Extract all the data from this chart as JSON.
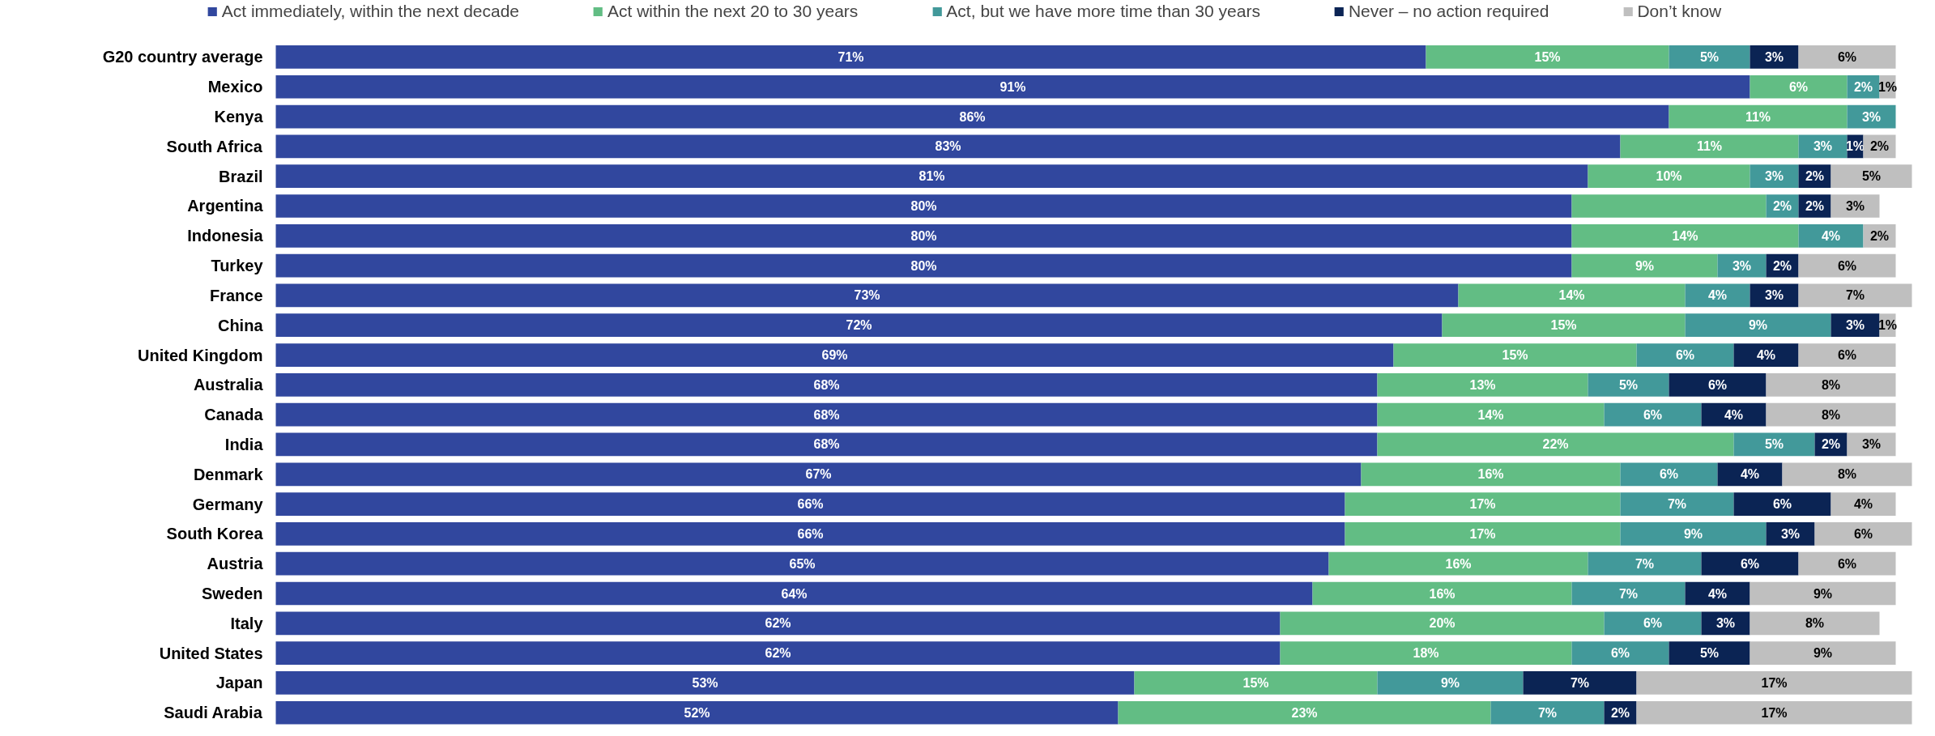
{
  "chart_data": {
    "type": "bar",
    "orientation": "horizontal",
    "stacked": true,
    "legend": "top",
    "categories": [
      "G20 country average",
      "Mexico",
      "Kenya",
      "South Africa",
      "Brazil",
      "Argentina",
      "Indonesia",
      "Turkey",
      "France",
      "China",
      "United Kingdom",
      "Australia",
      "Canada",
      "India",
      "Denmark",
      "Germany",
      "South Korea",
      "Austria",
      "Sweden",
      "Italy",
      "United States",
      "Japan",
      "Saudi Arabia"
    ],
    "series": [
      {
        "name": "Act immediately, within the next decade",
        "color": "#31479e",
        "values": [
          71,
          91,
          86,
          83,
          81,
          80,
          80,
          80,
          73,
          72,
          69,
          68,
          68,
          68,
          67,
          66,
          66,
          65,
          64,
          62,
          62,
          53,
          52
        ],
        "value_labels": [
          "71%",
          "91%",
          "86%",
          "83%",
          "81%",
          "80%",
          "80%",
          "80%",
          "73%",
          "72%",
          "69%",
          "68%",
          "68%",
          "68%",
          "67%",
          "66%",
          "66%",
          "65%",
          "64%",
          "62%",
          "62%",
          "53%",
          "52%"
        ]
      },
      {
        "name": "Act within the next 20 to 30 years",
        "color": "#62bd84",
        "values": [
          15,
          6,
          11,
          11,
          10,
          12,
          14,
          9,
          14,
          15,
          15,
          13,
          14,
          22,
          16,
          17,
          17,
          16,
          16,
          20,
          18,
          15,
          23
        ],
        "value_labels": [
          "15%",
          "6%",
          "11%",
          "11%",
          "10%",
          null,
          "14%",
          "9%",
          "14%",
          "15%",
          "15%",
          "13%",
          "14%",
          "22%",
          "16%",
          "17%",
          "17%",
          "16%",
          "16%",
          "20%",
          "18%",
          "15%",
          "23%"
        ]
      },
      {
        "name": "Act, but we have more time than 30 years",
        "color": "#42999a",
        "values": [
          5,
          2,
          3,
          3,
          3,
          2,
          4,
          3,
          4,
          9,
          6,
          5,
          6,
          5,
          6,
          7,
          9,
          7,
          7,
          6,
          6,
          9,
          7
        ],
        "value_labels": [
          "5%",
          "2%",
          "3%",
          "3%",
          "3%",
          "2%",
          "4%",
          "3%",
          "4%",
          "9%",
          "6%",
          "5%",
          "6%",
          "5%",
          "6%",
          "7%",
          "9%",
          "7%",
          "7%",
          "6%",
          "6%",
          "9%",
          "7%"
        ]
      },
      {
        "name": "Never – no action required",
        "color": "#0b2454",
        "values": [
          3,
          null,
          null,
          1,
          2,
          2,
          null,
          2,
          3,
          3,
          4,
          6,
          4,
          2,
          4,
          6,
          3,
          6,
          4,
          3,
          5,
          7,
          2
        ],
        "value_labels": [
          "3%",
          null,
          null,
          "1%",
          "2%",
          "2%",
          null,
          "2%",
          "3%",
          "3%",
          "4%",
          "6%",
          "4%",
          "2%",
          "4%",
          "6%",
          "3%",
          "6%",
          "4%",
          "3%",
          "5%",
          "7%",
          "2%"
        ]
      },
      {
        "name": "Don’t know",
        "color": "#bfbfbf",
        "values": [
          6,
          1,
          null,
          2,
          5,
          3,
          2,
          6,
          7,
          1,
          6,
          8,
          8,
          3,
          8,
          4,
          6,
          6,
          9,
          8,
          9,
          17,
          17
        ],
        "value_labels": [
          "6%",
          "1%",
          null,
          "2%",
          "5%",
          "3%",
          "2%",
          "6%",
          "7%",
          "1%",
          "6%",
          "8%",
          "8%",
          "3%",
          "8%",
          "4%",
          "6%",
          "6%",
          "9%",
          "8%",
          "9%",
          "17%",
          "17%"
        ]
      }
    ],
    "grid": false
  }
}
